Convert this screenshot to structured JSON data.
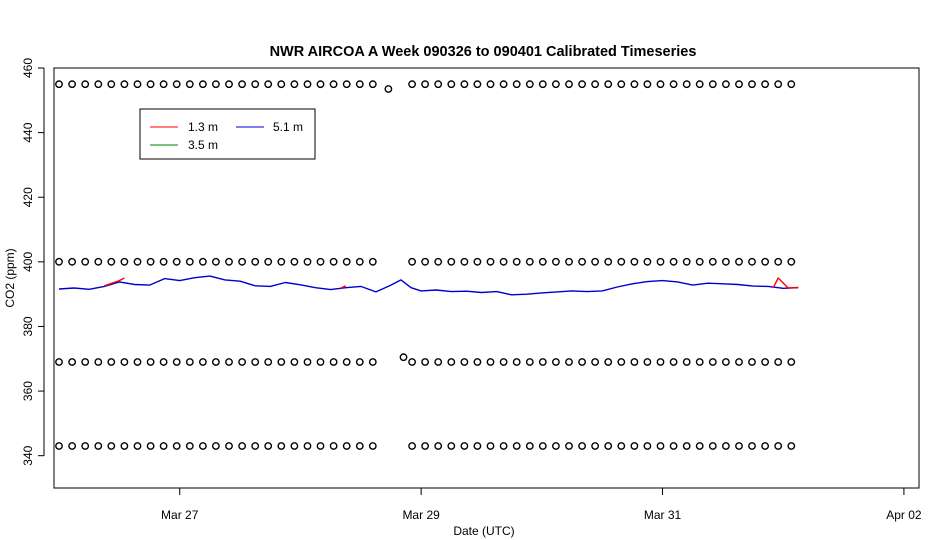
{
  "chart_data": {
    "type": "line",
    "title": "NWR AIRCOA A  Week 090326 to 090401  Calibrated Timeseries",
    "xlabel": "Date (UTC)",
    "ylabel": "CO2 (ppm)",
    "xlim": [
      "2009-03-25T23:00",
      "2009-04-02T03:00"
    ],
    "ylim": [
      330,
      460
    ],
    "x_ticks": [
      {
        "label": "Mar 27",
        "value": "2009-03-27T00:00"
      },
      {
        "label": "Mar 29",
        "value": "2009-03-29T00:00"
      },
      {
        "label": "Mar 31",
        "value": "2009-03-31T00:00"
      },
      {
        "label": "Apr 02",
        "value": "2009-04-02T00:00"
      }
    ],
    "y_ticks": [
      340,
      360,
      380,
      400,
      420,
      440,
      460
    ],
    "legend": {
      "placement": "top-left",
      "entries": [
        {
          "name": "1.3 m",
          "color": "#ff0000"
        },
        {
          "name": "3.5 m",
          "color": "#008000"
        },
        {
          "name": "5.1 m",
          "color": "#0000cd"
        }
      ]
    },
    "series": [
      {
        "name": "5.1 m",
        "color": "#0000cd",
        "points": [
          [
            "2009-03-26T00:00",
            391.6
          ],
          [
            "2009-03-26T03:00",
            391.9
          ],
          [
            "2009-03-26T06:00",
            391.5
          ],
          [
            "2009-03-26T09:00",
            392.4
          ],
          [
            "2009-03-26T12:00",
            393.8
          ],
          [
            "2009-03-26T15:00",
            393.0
          ],
          [
            "2009-03-26T18:00",
            392.8
          ],
          [
            "2009-03-26T21:00",
            394.8
          ],
          [
            "2009-03-27T00:00",
            394.2
          ],
          [
            "2009-03-27T03:00",
            395.1
          ],
          [
            "2009-03-27T06:00",
            395.6
          ],
          [
            "2009-03-27T09:00",
            394.4
          ],
          [
            "2009-03-27T12:00",
            394.0
          ],
          [
            "2009-03-27T15:00",
            392.6
          ],
          [
            "2009-03-27T18:00",
            392.4
          ],
          [
            "2009-03-27T21:00",
            393.6
          ],
          [
            "2009-03-28T00:00",
            392.9
          ],
          [
            "2009-03-28T03:00",
            392.0
          ],
          [
            "2009-03-28T06:00",
            391.4
          ],
          [
            "2009-03-28T09:00",
            392.0
          ],
          [
            "2009-03-28T12:00",
            392.4
          ],
          [
            "2009-03-28T15:00",
            390.7
          ],
          [
            "2009-03-28T18:00",
            392.8
          ],
          [
            "2009-03-28T20:00",
            394.4
          ],
          [
            "2009-03-28T22:00",
            392.0
          ],
          [
            "2009-03-29T00:00",
            391.0
          ],
          [
            "2009-03-29T03:00",
            391.3
          ],
          [
            "2009-03-29T06:00",
            390.8
          ],
          [
            "2009-03-29T09:00",
            390.9
          ],
          [
            "2009-03-29T12:00",
            390.5
          ],
          [
            "2009-03-29T15:00",
            390.8
          ],
          [
            "2009-03-29T18:00",
            389.8
          ],
          [
            "2009-03-29T21:00",
            390.0
          ],
          [
            "2009-03-30T00:00",
            390.4
          ],
          [
            "2009-03-30T03:00",
            390.7
          ],
          [
            "2009-03-30T06:00",
            391.0
          ],
          [
            "2009-03-30T09:00",
            390.8
          ],
          [
            "2009-03-30T12:00",
            391.0
          ],
          [
            "2009-03-30T15:00",
            392.2
          ],
          [
            "2009-03-30T18:00",
            393.2
          ],
          [
            "2009-03-30T21:00",
            393.9
          ],
          [
            "2009-03-31T00:00",
            394.2
          ],
          [
            "2009-03-31T03:00",
            393.8
          ],
          [
            "2009-03-31T06:00",
            392.8
          ],
          [
            "2009-03-31T09:00",
            393.4
          ],
          [
            "2009-03-31T12:00",
            393.2
          ],
          [
            "2009-03-31T15:00",
            393.0
          ],
          [
            "2009-03-31T18:00",
            392.5
          ],
          [
            "2009-03-31T21:00",
            392.4
          ],
          [
            "2009-04-01T00:00",
            391.8
          ],
          [
            "2009-04-01T03:00",
            392.0
          ]
        ]
      },
      {
        "name": "1.3 m",
        "color": "#ff0000",
        "points": [
          [
            "2009-03-26T09:00",
            392.6
          ],
          [
            "2009-03-26T12:00",
            394.2
          ],
          [
            "2009-03-26T13:00",
            395.0
          ],
          [
            "2009-03-28T08:00",
            391.8
          ],
          [
            "2009-03-28T09:00",
            392.6
          ],
          [
            "2009-03-31T22:00",
            392.0
          ],
          [
            "2009-03-31T23:00",
            395.0
          ],
          [
            "2009-04-01T01:00",
            391.9
          ],
          [
            "2009-04-01T03:00",
            392.1
          ]
        ]
      },
      {
        "name": "3.5 m",
        "color": "#008000",
        "points": []
      },
      {
        "name": "calibration",
        "marker": "circle",
        "levels": [
          455,
          400,
          369,
          343
        ],
        "x_range": [
          "2009-03-26T00:00",
          "2009-04-01T03:00"
        ],
        "gap": [
          "2009-03-28T16:00",
          "2009-03-28T21:00"
        ],
        "interval_hours": 2.6,
        "extra_points": [
          [
            "2009-03-28T17:30",
            453.5
          ],
          [
            "2009-03-28T20:30",
            370.5
          ]
        ]
      }
    ]
  }
}
